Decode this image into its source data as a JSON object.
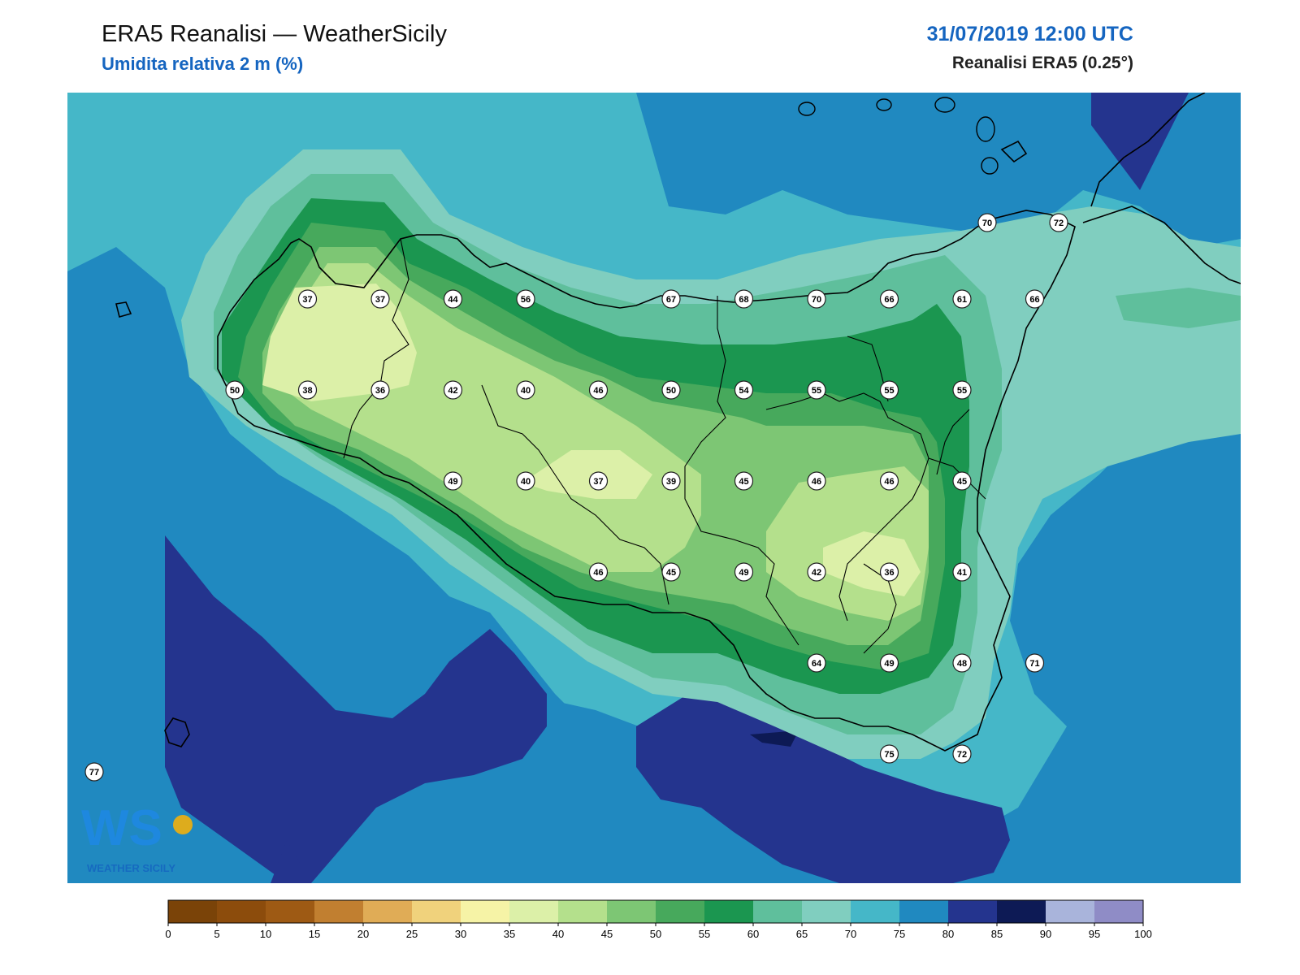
{
  "header": {
    "title": "ERA5 Reanalisi — WeatherSicily",
    "subtitle": "Umidita relativa 2 m (%)",
    "datetime": "31/07/2019 12:00 UTC",
    "source": "Reanalisi ERA5 (0.25°)"
  },
  "logo": {
    "text": "WEATHER SICILY",
    "icon": "ws-logo-icon"
  },
  "stations": [
    {
      "value": "37",
      "row": 0,
      "col": 1
    },
    {
      "value": "37",
      "row": 0,
      "col": 2
    },
    {
      "value": "44",
      "row": 0,
      "col": 3
    },
    {
      "value": "56",
      "row": 0,
      "col": 4
    },
    {
      "value": "67",
      "row": 0,
      "col": 6
    },
    {
      "value": "68",
      "row": 0,
      "col": 7
    },
    {
      "value": "70",
      "row": 0,
      "col": 8
    },
    {
      "value": "66",
      "row": 0,
      "col": 9
    },
    {
      "value": "61",
      "row": 0,
      "col": 10
    },
    {
      "value": "66",
      "row": 0,
      "col": 11
    },
    {
      "value": "50",
      "row": 1,
      "col": 0
    },
    {
      "value": "38",
      "row": 1,
      "col": 1
    },
    {
      "value": "36",
      "row": 1,
      "col": 2
    },
    {
      "value": "42",
      "row": 1,
      "col": 3
    },
    {
      "value": "40",
      "row": 1,
      "col": 4
    },
    {
      "value": "46",
      "row": 1,
      "col": 5
    },
    {
      "value": "50",
      "row": 1,
      "col": 6
    },
    {
      "value": "54",
      "row": 1,
      "col": 7
    },
    {
      "value": "55",
      "row": 1,
      "col": 8
    },
    {
      "value": "55",
      "row": 1,
      "col": 9
    },
    {
      "value": "55",
      "row": 1,
      "col": 10
    },
    {
      "value": "49",
      "row": 2,
      "col": 3
    },
    {
      "value": "40",
      "row": 2,
      "col": 4
    },
    {
      "value": "37",
      "row": 2,
      "col": 5
    },
    {
      "value": "39",
      "row": 2,
      "col": 6
    },
    {
      "value": "45",
      "row": 2,
      "col": 7
    },
    {
      "value": "46",
      "row": 2,
      "col": 8
    },
    {
      "value": "46",
      "row": 2,
      "col": 9
    },
    {
      "value": "45",
      "row": 2,
      "col": 10
    },
    {
      "value": "46",
      "row": 3,
      "col": 5
    },
    {
      "value": "45",
      "row": 3,
      "col": 6
    },
    {
      "value": "49",
      "row": 3,
      "col": 7
    },
    {
      "value": "42",
      "row": 3,
      "col": 8
    },
    {
      "value": "36",
      "row": 3,
      "col": 9
    },
    {
      "value": "41",
      "row": 3,
      "col": 10
    },
    {
      "value": "64",
      "row": 4,
      "col": 8
    },
    {
      "value": "49",
      "row": 4,
      "col": 9
    },
    {
      "value": "48",
      "row": 4,
      "col": 10
    },
    {
      "value": "71",
      "row": 4,
      "col": 11
    },
    {
      "value": "75",
      "row": 5,
      "col": 9
    },
    {
      "value": "72",
      "row": 5,
      "col": 10
    },
    {
      "value": "70",
      "row": -1,
      "col": 11
    },
    {
      "value": "72",
      "row": -1,
      "col": 12
    },
    {
      "value": "77",
      "row": 5,
      "col": -1
    }
  ],
  "colorbar": {
    "ticks": [
      "0",
      "5",
      "10",
      "15",
      "20",
      "25",
      "30",
      "35",
      "40",
      "45",
      "50",
      "55",
      "60",
      "65",
      "70",
      "75",
      "80",
      "85",
      "90",
      "95",
      "100"
    ],
    "colors": [
      "#7a4308",
      "#8c4c0c",
      "#9e5a14",
      "#c17f30",
      "#e0ac56",
      "#f0d27c",
      "#f6f3a6",
      "#dcf0a8",
      "#b4e08c",
      "#7dc674",
      "#47a95c",
      "#1b9650",
      "#5fbf9c",
      "#80cebf",
      "#45b7c8",
      "#2089c0",
      "#24348e",
      "#0d1a55",
      "#a9b4db",
      "#8f8cc6"
    ]
  }
}
